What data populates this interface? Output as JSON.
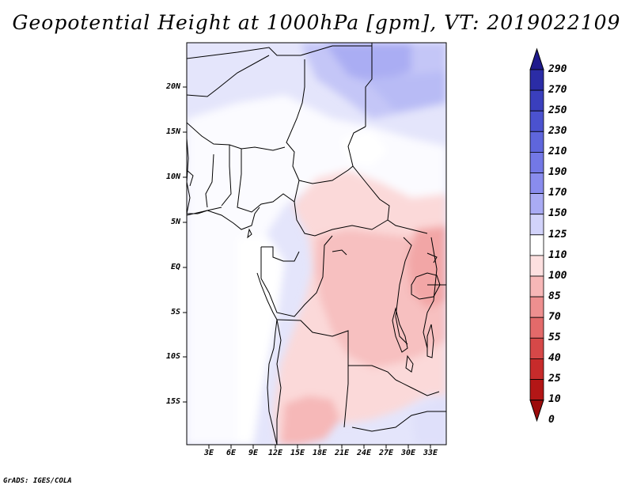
{
  "title": "Geopotential Height at 1000hPa [gpm], VT: 2019022109",
  "credit": "GrADS: IGES/COLA",
  "map": {
    "lat_labels": [
      "20N",
      "15N",
      "10N",
      "5N",
      "EQ",
      "5S",
      "10S",
      "15S"
    ],
    "lon_labels": [
      "3E",
      "6E",
      "9E",
      "12E",
      "15E",
      "18E",
      "21E",
      "24E",
      "27E",
      "30E",
      "33E"
    ]
  },
  "colorbar": {
    "labels": [
      "290",
      "270",
      "250",
      "230",
      "210",
      "190",
      "170",
      "150",
      "125",
      "110",
      "100",
      "85",
      "70",
      "55",
      "40",
      "25",
      "10",
      "0"
    ],
    "colors": [
      "#1f1a8c",
      "#2b2ca6",
      "#3a3fbd",
      "#4b52cf",
      "#5f66dc",
      "#7378e6",
      "#898cee",
      "#a9abf4",
      "#d2d3fa",
      "#ffffff",
      "#fde0e0",
      "#f7b7b7",
      "#ee8f8f",
      "#e36a6a",
      "#d64848",
      "#c72b2b",
      "#b31616",
      "#9c0c0c"
    ]
  }
}
